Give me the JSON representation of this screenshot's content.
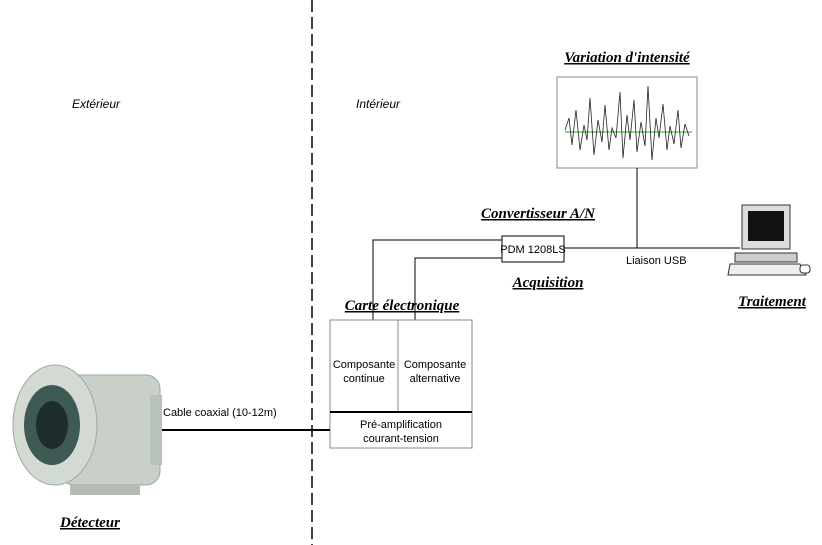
{
  "zones": {
    "outside": "Extérieur",
    "inside": "Intérieur"
  },
  "plot": {
    "title": "Variation d'intensité"
  },
  "converter": {
    "title": "Convertisseur A/N",
    "device": "PDM 1208LS",
    "caption": "Acquisition"
  },
  "link": "Liaison USB",
  "computer": {
    "caption": "Traitement"
  },
  "board": {
    "title": "Carte électronique",
    "dc": [
      "Composante",
      "continue"
    ],
    "ac": [
      "Composante",
      "alternative"
    ],
    "preamp": [
      "Pré-amplification",
      "courant-tension"
    ]
  },
  "cable": "Cable coaxial (10-12m)",
  "detector": {
    "caption": "Détecteur"
  }
}
